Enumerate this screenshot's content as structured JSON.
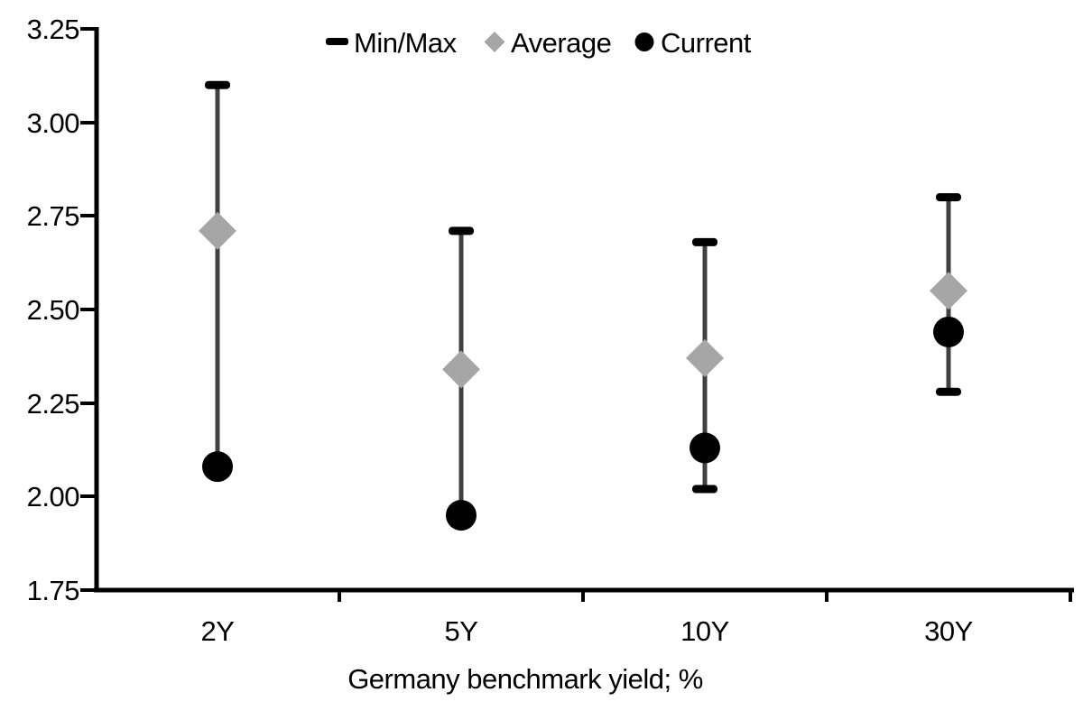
{
  "chart_data": {
    "type": "scatter",
    "subtype": "min-max-range-with-average-and-current",
    "title": "",
    "xlabel": "Germany benchmark yield; %",
    "ylabel": "",
    "ylim": [
      1.75,
      3.25
    ],
    "yticks": [
      1.75,
      2.0,
      2.25,
      2.5,
      2.75,
      3.0,
      3.25
    ],
    "ytick_labels": [
      "1.75",
      "2.00",
      "2.25",
      "2.50",
      "2.75",
      "3.00",
      "3.25"
    ],
    "categories": [
      "2Y",
      "5Y",
      "10Y",
      "30Y"
    ],
    "series": [
      {
        "name": "Min/Max",
        "type": "range",
        "marker": "dash-cap",
        "min": [
          2.08,
          1.95,
          2.02,
          2.28
        ],
        "max": [
          3.1,
          2.71,
          2.68,
          2.8
        ],
        "color": "#000000",
        "line_color": "#404040"
      },
      {
        "name": "Average",
        "type": "point",
        "marker": "diamond",
        "values": [
          2.71,
          2.34,
          2.37,
          2.55
        ],
        "color": "#a6a6a6"
      },
      {
        "name": "Current",
        "type": "point",
        "marker": "circle",
        "values": [
          2.08,
          1.95,
          2.13,
          2.44
        ],
        "color": "#000000"
      }
    ],
    "legend_position": "top-center",
    "grid": false,
    "colors": {
      "axis": "#000000",
      "background": "#ffffff",
      "whisker_line": "#404040"
    }
  }
}
